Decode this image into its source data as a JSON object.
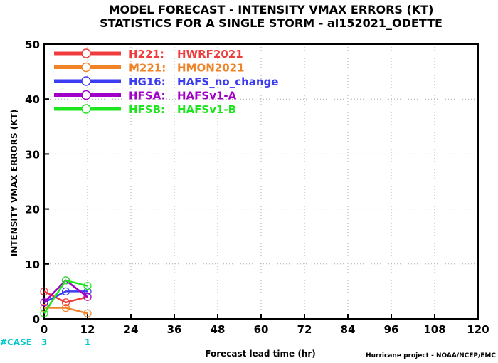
{
  "chart_data": {
    "type": "line",
    "title_line1": "MODEL FORECAST - INTENSITY VMAX ERRORS (KT)",
    "title_line2": "STATISTICS FOR A SINGLE STORM - al152021_ODETTE",
    "xlabel": "Forecast lead time (hr)",
    "ylabel": "INTENSITY VMAX ERRORS (KT)",
    "credit": "Hurricane project - NOAA/NCEP/EMC",
    "xlim": [
      0,
      120
    ],
    "ylim": [
      0,
      50
    ],
    "xticks": [
      0,
      12,
      24,
      36,
      48,
      60,
      72,
      84,
      96,
      108,
      120
    ],
    "yticks": [
      0,
      10,
      20,
      30,
      40,
      50
    ],
    "grid": true,
    "legend_position": "top-left",
    "case_label": "#CASE",
    "case_color": "#00c8c8",
    "cases": [
      {
        "x": 0,
        "count": "3"
      },
      {
        "x": 12,
        "count": "1"
      }
    ],
    "series": [
      {
        "code": "H221:",
        "name": "HWRF2021",
        "color": "#f03c3c",
        "x": [
          0,
          6,
          12
        ],
        "y": [
          5,
          3,
          4
        ]
      },
      {
        "code": "M221:",
        "name": "HMON2021",
        "color": "#f08228",
        "x": [
          0,
          6,
          12
        ],
        "y": [
          2,
          2,
          1
        ]
      },
      {
        "code": "HG16:",
        "name": "HAFS_no_change",
        "color": "#3c3cf0",
        "x": [
          0,
          6,
          12
        ],
        "y": [
          3,
          5,
          5
        ]
      },
      {
        "code": "HFSA:",
        "name": "HAFSv1-A",
        "color": "#a000c8",
        "x": [
          0,
          6,
          12
        ],
        "y": [
          3,
          7,
          4
        ]
      },
      {
        "code": "HFSB:",
        "name": "HAFSv1-B",
        "color": "#1ee61e",
        "x": [
          0,
          6,
          12
        ],
        "y": [
          1,
          7,
          6
        ]
      }
    ]
  }
}
